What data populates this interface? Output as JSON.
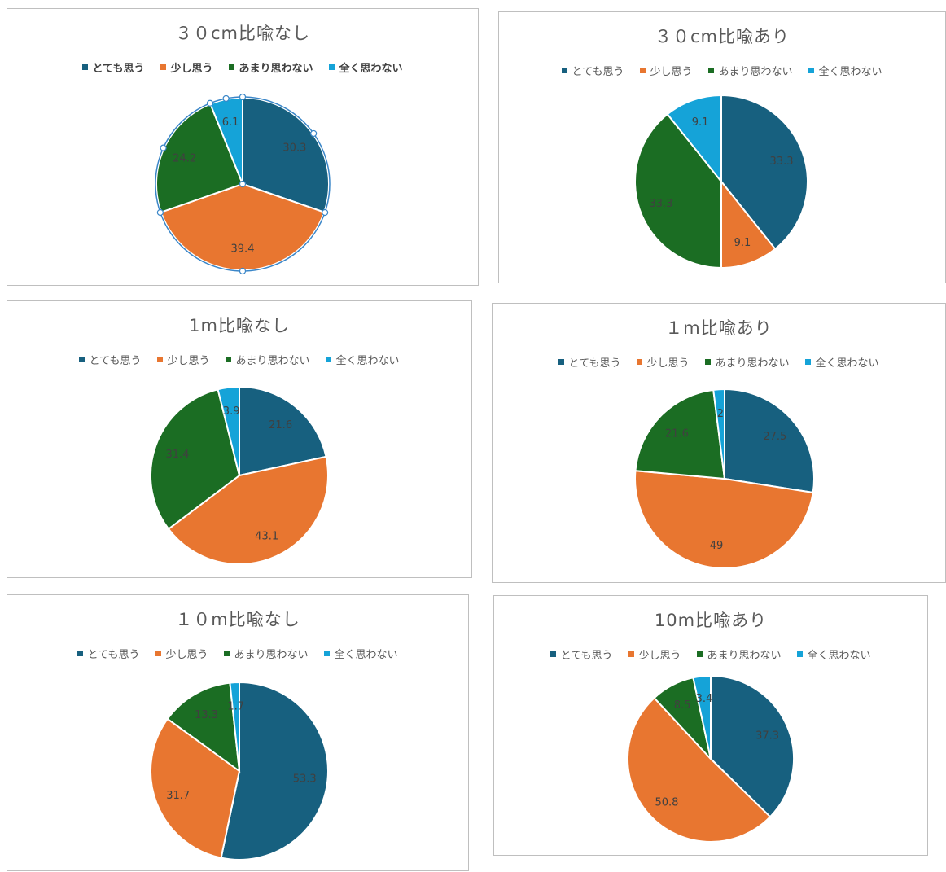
{
  "colors": {
    "とても思う": "#17607f",
    "少し思う": "#e87630",
    "あまり思わない": "#1b6d23",
    "全く思わない": "#15a3d8"
  },
  "chart_data": [
    {
      "type": "pie",
      "title": "３０cm比喩なし",
      "legend": [
        "とても思う",
        "少し思う",
        "あまり思わない",
        "全く思わない"
      ],
      "legend_position": "top",
      "slices": [
        {
          "label": "とても思う",
          "value": 30.3,
          "data_label": "30.3"
        },
        {
          "label": "少し思う",
          "value": 39.4,
          "data_label": "39.4"
        },
        {
          "label": "あまり思わない",
          "value": 24.2,
          "data_label": "24.2"
        },
        {
          "label": "全く思わない",
          "value": 6.1,
          "data_label": "6.1"
        }
      ]
    },
    {
      "type": "pie",
      "title": "３０cm比喩あり",
      "legend": [
        "とても思う",
        "少し思う",
        "あまり思わない",
        "全く思わない"
      ],
      "legend_position": "top",
      "slices": [
        {
          "label": "とても思う",
          "value": 33.3,
          "data_label": "33.3"
        },
        {
          "label": "少し思う",
          "value": 9.1,
          "data_label": "9.1"
        },
        {
          "label": "あまり思わない",
          "value": 33.3,
          "data_label": "33.3"
        },
        {
          "label": "全く思わない",
          "value": 9.1,
          "data_label": "9.1"
        }
      ]
    },
    {
      "type": "pie",
      "title": "1m比喩なし",
      "legend": [
        "とても思う",
        "少し思う",
        "あまり思わない",
        "全く思わない"
      ],
      "legend_position": "top",
      "slices": [
        {
          "label": "とても思う",
          "value": 21.6,
          "data_label": "21.6"
        },
        {
          "label": "少し思う",
          "value": 43.1,
          "data_label": "43.1"
        },
        {
          "label": "あまり思わない",
          "value": 31.4,
          "data_label": "31.4"
        },
        {
          "label": "全く思わない",
          "value": 3.9,
          "data_label": "3.9"
        }
      ]
    },
    {
      "type": "pie",
      "title": "１m比喩あり",
      "legend": [
        "とても思う",
        "少し思う",
        "あまり思わない",
        "全く思わない"
      ],
      "legend_position": "top",
      "slices": [
        {
          "label": "とても思う",
          "value": 27.5,
          "data_label": "27.5"
        },
        {
          "label": "少し思う",
          "value": 49,
          "data_label": "49"
        },
        {
          "label": "あまり思わない",
          "value": 21.6,
          "data_label": "21.6"
        },
        {
          "label": "全く思わない",
          "value": 2,
          "data_label": "2"
        }
      ]
    },
    {
      "type": "pie",
      "title": "１０m比喩なし",
      "legend": [
        "とても思う",
        "少し思う",
        "あまり思わない",
        "全く思わない"
      ],
      "legend_position": "top",
      "slices": [
        {
          "label": "とても思う",
          "value": 53.3,
          "data_label": "53.3"
        },
        {
          "label": "少し思う",
          "value": 31.7,
          "data_label": "31.7"
        },
        {
          "label": "あまり思わない",
          "value": 13.3,
          "data_label": "13.3"
        },
        {
          "label": "全く思わない",
          "value": 1.7,
          "data_label": "1.7"
        }
      ]
    },
    {
      "type": "pie",
      "title": "10m比喩あり",
      "legend": [
        "とても思う",
        "少し思う",
        "あまり思わない",
        "全く思わない"
      ],
      "legend_position": "top",
      "slices": [
        {
          "label": "とても思う",
          "value": 37.3,
          "data_label": "37.3"
        },
        {
          "label": "少し思う",
          "value": 50.8,
          "data_label": "50.8"
        },
        {
          "label": "あまり思わない",
          "value": 8.5,
          "data_label": "8.5"
        },
        {
          "label": "全く思わない",
          "value": 3.4,
          "data_label": "3.4"
        }
      ]
    }
  ]
}
